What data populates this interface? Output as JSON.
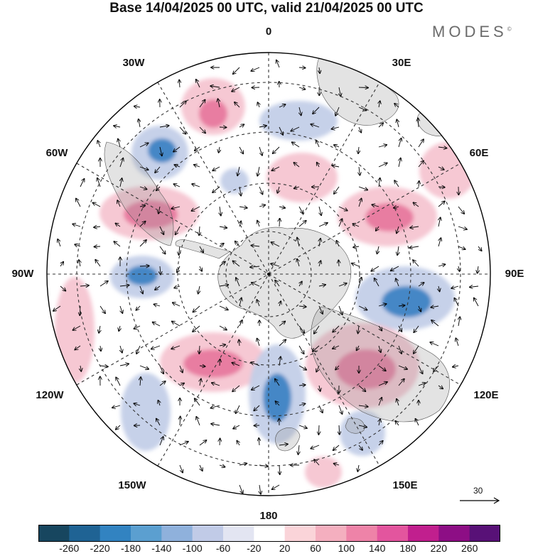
{
  "header": {
    "title": "Base 14/04/2025 00 UTC, valid 21/04/2025 00 UTC",
    "brand": "MODES",
    "brand_mark": "©"
  },
  "map": {
    "projection": "south-polar-stereographic",
    "longitude_labels": {
      "top": "0",
      "top_left": "30W",
      "top_right": "30E",
      "upper_left": "60W",
      "upper_right": "60E",
      "left": "90W",
      "right": "90E",
      "lower_left": "120W",
      "lower_right": "120E",
      "bottom_left": "150W",
      "bottom_right": "150E",
      "bottom": "180"
    },
    "reference_vector": {
      "label": "30"
    },
    "anomaly_colors": {
      "positive": "#e8799f",
      "positive_light": "#f6c5d1",
      "negative": "#3d84c4",
      "negative_light": "#c3cfe8"
    }
  },
  "colorbar": {
    "colors": [
      "#17465f",
      "#1f6394",
      "#3283c1",
      "#5b9fd0",
      "#8fb1dc",
      "#c1cbe7",
      "#e3e5f2",
      "#ffffff",
      "#fad4d9",
      "#f4afbf",
      "#ee83a8",
      "#e3559e",
      "#c11f8e",
      "#8d0e85",
      "#581177"
    ],
    "ticks": [
      "-260",
      "-220",
      "-180",
      "-140",
      "-100",
      "-60",
      "-20",
      "20",
      "60",
      "100",
      "140",
      "180",
      "220",
      "260"
    ]
  }
}
